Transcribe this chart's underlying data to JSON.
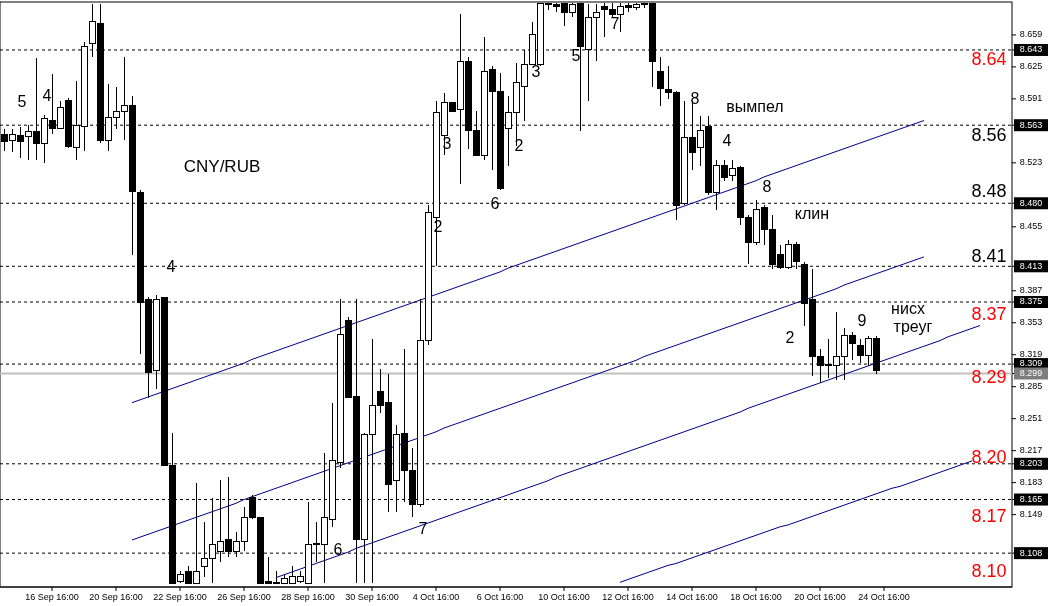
{
  "chart_data": {
    "type": "candlestick",
    "title": "CNY/RUB",
    "categories": [
      null,
      null,
      null,
      null,
      null,
      null,
      "16 Sep 16:00",
      null,
      null,
      null,
      null,
      null,
      null,
      null,
      "20 Sep 16:00",
      null,
      null,
      null,
      null,
      null,
      null,
      null,
      "22 Sep 16:00",
      null,
      null,
      null,
      null,
      null,
      null,
      null,
      "26 Sep 16:00",
      null,
      null,
      null,
      null,
      null,
      null,
      null,
      "28 Sep 16:00",
      null,
      null,
      null,
      null,
      null,
      null,
      null,
      "30 Sep 16:00",
      null,
      null,
      null,
      null,
      null,
      null,
      null,
      "4 Oct 16:00",
      null,
      null,
      null,
      null,
      null,
      null,
      null,
      "6 Oct 16:00",
      null,
      null,
      null,
      null,
      null,
      null,
      null,
      "10 Oct 16:00",
      null,
      null,
      null,
      null,
      null,
      null,
      null,
      "12 Oct 16:00",
      null,
      null,
      null,
      null,
      null,
      null,
      null,
      "14 Oct 16:00",
      null,
      null,
      null,
      null,
      null,
      null,
      null,
      "18 Oct 16:00",
      null,
      null,
      null,
      null,
      null,
      null,
      null,
      "20 Oct 16:00",
      null,
      null,
      null,
      null,
      null,
      null,
      null,
      "24 Oct 16:00",
      null,
      null,
      null,
      null,
      null,
      null,
      null,
      null,
      null,
      null,
      null,
      null,
      null,
      null,
      null
    ],
    "ohlc": [
      [
        8.553,
        8.559,
        8.536,
        8.546
      ],
      [
        8.547,
        8.559,
        8.534,
        8.553
      ],
      [
        8.552,
        8.561,
        8.528,
        8.546
      ],
      [
        8.551,
        8.563,
        8.526,
        8.556
      ],
      [
        8.556,
        8.634,
        8.526,
        8.544
      ],
      [
        8.544,
        8.574,
        8.523,
        8.57
      ],
      [
        8.568,
        8.617,
        8.554,
        8.559
      ],
      [
        8.559,
        8.589,
        8.559,
        8.582
      ],
      [
        8.589,
        8.592,
        8.539,
        8.54
      ],
      [
        8.539,
        8.61,
        8.526,
        8.563
      ],
      [
        8.562,
        8.652,
        8.536,
        8.647
      ],
      [
        8.65,
        8.692,
        8.635,
        8.673
      ],
      [
        8.671,
        8.692,
        8.544,
        8.547
      ],
      [
        8.547,
        8.607,
        8.536,
        8.571
      ],
      [
        8.571,
        8.604,
        8.559,
        8.578
      ],
      [
        8.578,
        8.636,
        8.547,
        8.584
      ],
      [
        8.584,
        8.594,
        8.425,
        8.492
      ],
      [
        8.491,
        8.494,
        8.32,
        8.375
      ],
      [
        8.378,
        8.38,
        8.273,
        8.3
      ],
      [
        8.302,
        8.383,
        8.283,
        8.378
      ],
      [
        8.38,
        8.38,
        8.201,
        8.201
      ],
      [
        8.201,
        8.236,
        8.076,
        8.076
      ],
      [
        8.078,
        8.089,
        8.076,
        8.085
      ],
      [
        8.089,
        8.094,
        8.076,
        8.076
      ],
      [
        8.076,
        8.183,
        8.076,
        8.089
      ],
      [
        8.094,
        8.141,
        8.083,
        8.102
      ],
      [
        8.102,
        8.167,
        8.076,
        8.117
      ],
      [
        8.11,
        8.186,
        8.099,
        8.12
      ],
      [
        8.122,
        8.189,
        8.104,
        8.11
      ],
      [
        8.11,
        8.131,
        8.104,
        8.12
      ],
      [
        8.12,
        8.157,
        8.11,
        8.146
      ],
      [
        8.167,
        8.17,
        8.144,
        8.146
      ],
      [
        8.146,
        8.146,
        8.076,
        8.076
      ],
      [
        8.078,
        8.104,
        8.076,
        8.076
      ],
      [
        8.077,
        8.089,
        8.076,
        8.076
      ],
      [
        8.076,
        8.085,
        8.076,
        8.081
      ],
      [
        8.076,
        8.094,
        8.076,
        8.083
      ],
      [
        8.078,
        8.089,
        8.076,
        8.083
      ],
      [
        8.076,
        8.162,
        8.076,
        8.117
      ],
      [
        8.117,
        8.141,
        8.099,
        8.118
      ],
      [
        8.117,
        8.215,
        8.076,
        8.146
      ],
      [
        8.144,
        8.268,
        8.136,
        8.207
      ],
      [
        8.204,
        8.378,
        8.199,
        8.341
      ],
      [
        8.355,
        8.359,
        8.273,
        8.273
      ],
      [
        8.275,
        8.378,
        8.076,
        8.123
      ],
      [
        8.123,
        8.236,
        8.076,
        8.234
      ],
      [
        8.234,
        8.336,
        8.076,
        8.265
      ],
      [
        8.28,
        8.304,
        8.257,
        8.265
      ],
      [
        8.268,
        8.299,
        8.152,
        8.181
      ],
      [
        8.185,
        8.244,
        8.152,
        8.234
      ],
      [
        8.235,
        8.325,
        8.162,
        8.196
      ],
      [
        8.196,
        8.22,
        8.146,
        8.16
      ],
      [
        8.16,
        8.378,
        8.157,
        8.334
      ],
      [
        8.334,
        8.478,
        8.329,
        8.47
      ],
      [
        8.465,
        8.589,
        8.413,
        8.576
      ],
      [
        8.552,
        8.597,
        8.531,
        8.587
      ],
      [
        8.587,
        8.587,
        8.578,
        8.578
      ],
      [
        8.58,
        8.681,
        8.501,
        8.631
      ],
      [
        8.631,
        8.636,
        8.538,
        8.557
      ],
      [
        8.557,
        8.578,
        8.531,
        8.531
      ],
      [
        8.531,
        8.657,
        8.526,
        8.62
      ],
      [
        8.622,
        8.626,
        8.515,
        8.599
      ],
      [
        8.599,
        8.618,
        8.494,
        8.496
      ],
      [
        8.56,
        8.594,
        8.52,
        8.576
      ],
      [
        8.576,
        8.629,
        8.541,
        8.608
      ],
      [
        8.604,
        8.643,
        8.568,
        8.628
      ],
      [
        8.628,
        8.673,
        8.628,
        8.659
      ],
      [
        8.628,
        8.692,
        8.626,
        8.692
      ],
      [
        8.691,
        8.693,
        8.686,
        8.692
      ],
      [
        8.691,
        8.693,
        8.683,
        8.689
      ],
      [
        8.692,
        8.693,
        8.668,
        8.683
      ],
      [
        8.683,
        8.693,
        8.678,
        8.691
      ],
      [
        8.692,
        8.693,
        8.557,
        8.647
      ],
      [
        8.643,
        8.692,
        8.589,
        8.678
      ],
      [
        8.678,
        8.692,
        8.631,
        8.683
      ],
      [
        8.689,
        8.693,
        8.657,
        8.686
      ],
      [
        8.686,
        8.693,
        8.678,
        8.681
      ],
      [
        8.681,
        8.693,
        8.662,
        8.689
      ],
      [
        8.69,
        8.693,
        8.683,
        8.688
      ],
      [
        8.688,
        8.693,
        8.686,
        8.691
      ],
      [
        8.691,
        8.693,
        8.688,
        8.692
      ],
      [
        8.692,
        8.693,
        8.604,
        8.631
      ],
      [
        8.62,
        8.636,
        8.583,
        8.602
      ],
      [
        8.601,
        8.626,
        8.591,
        8.598
      ],
      [
        8.598,
        8.599,
        8.462,
        8.478
      ],
      [
        8.48,
        8.589,
        8.478,
        8.55
      ],
      [
        8.55,
        8.589,
        8.515,
        8.534
      ],
      [
        8.539,
        8.573,
        8.52,
        8.557
      ],
      [
        8.562,
        8.573,
        8.489,
        8.491
      ],
      [
        8.491,
        8.526,
        8.473,
        8.52
      ],
      [
        8.52,
        8.526,
        8.504,
        8.507
      ],
      [
        8.51,
        8.526,
        8.504,
        8.517
      ],
      [
        8.518,
        8.52,
        8.457,
        8.465
      ],
      [
        8.465,
        8.468,
        8.415,
        8.438
      ],
      [
        8.438,
        8.483,
        8.436,
        8.473
      ],
      [
        8.475,
        8.478,
        8.436,
        8.452
      ],
      [
        8.452,
        8.468,
        8.41,
        8.415
      ],
      [
        8.425,
        8.436,
        8.41,
        8.412
      ],
      [
        8.412,
        8.441,
        8.41,
        8.436
      ],
      [
        8.436,
        8.439,
        8.41,
        8.418
      ],
      [
        8.415,
        8.418,
        8.35,
        8.373
      ],
      [
        8.378,
        8.41,
        8.296,
        8.317
      ],
      [
        8.317,
        8.325,
        8.289,
        8.307
      ],
      [
        8.307,
        8.336,
        8.294,
        8.309
      ],
      [
        8.307,
        8.364,
        8.292,
        8.317
      ],
      [
        8.317,
        8.347,
        8.292,
        8.339
      ],
      [
        8.339,
        8.343,
        8.313,
        8.331
      ],
      [
        8.329,
        8.336,
        8.31,
        8.318
      ],
      [
        8.318,
        8.339,
        8.307,
        8.336
      ],
      [
        8.336,
        8.339,
        8.299,
        8.302
      ],
      null,
      null,
      null,
      null,
      null,
      null,
      null,
      null,
      null,
      null,
      null,
      null,
      null,
      null,
      null,
      null
    ],
    "series": [
      {
        "type": "line",
        "color": "#00008b",
        "values": [
          null,
          null,
          null,
          null,
          null,
          null,
          null,
          null,
          null,
          null,
          null,
          null,
          null,
          null,
          null,
          null,
          8.268,
          8.271,
          8.274,
          8.277,
          8.28,
          8.283,
          8.286,
          8.289,
          8.292,
          8.295,
          8.298,
          8.301,
          8.304,
          8.307,
          8.31,
          8.314,
          8.317,
          8.32,
          8.323,
          8.326,
          8.329,
          8.332,
          8.335,
          8.338,
          8.341,
          8.344,
          8.347,
          8.35,
          8.353,
          8.356,
          8.359,
          8.362,
          8.365,
          8.368,
          8.371,
          8.374,
          8.377,
          8.38,
          8.383,
          8.386,
          8.389,
          8.392,
          8.395,
          8.398,
          8.401,
          8.404,
          8.407,
          8.411,
          8.414,
          8.417,
          8.42,
          8.423,
          8.426,
          8.429,
          8.432,
          8.435,
          8.438,
          8.441,
          8.444,
          8.447,
          8.45,
          8.453,
          8.456,
          8.459,
          8.462,
          8.465,
          8.468,
          8.471,
          8.474,
          8.477,
          8.48,
          8.483,
          8.486,
          8.489,
          8.492,
          8.495,
          8.498,
          8.501,
          8.504,
          8.508,
          8.511,
          8.514,
          8.517,
          8.52,
          8.523,
          8.526,
          8.529,
          8.532,
          8.535,
          8.538,
          8.541,
          8.544,
          8.547,
          8.55,
          8.553,
          8.556,
          8.559,
          8.562,
          8.565,
          8.568,
          null,
          null,
          null,
          null,
          null,
          null,
          null,
          null,
          null,
          null
        ]
      },
      {
        "type": "line",
        "color": "#00008b",
        "values": [
          null,
          null,
          null,
          null,
          null,
          null,
          null,
          null,
          null,
          null,
          null,
          null,
          null,
          null,
          null,
          null,
          8.122,
          8.125,
          8.128,
          8.131,
          8.134,
          8.137,
          8.14,
          8.143,
          8.146,
          8.149,
          8.152,
          8.155,
          8.158,
          8.161,
          8.165,
          8.168,
          8.171,
          8.174,
          8.177,
          8.18,
          8.183,
          8.186,
          8.189,
          8.192,
          8.195,
          8.198,
          8.201,
          8.204,
          8.207,
          8.21,
          8.213,
          8.216,
          8.219,
          8.222,
          8.225,
          8.228,
          8.231,
          8.234,
          8.237,
          8.241,
          8.244,
          8.247,
          8.25,
          8.253,
          8.256,
          8.259,
          8.262,
          8.265,
          8.268,
          8.271,
          8.274,
          8.277,
          8.28,
          8.283,
          8.286,
          8.289,
          8.292,
          8.295,
          8.298,
          8.301,
          8.304,
          8.307,
          8.31,
          8.313,
          8.317,
          8.32,
          8.323,
          8.326,
          8.329,
          8.332,
          8.335,
          8.338,
          8.341,
          8.344,
          8.347,
          8.35,
          8.353,
          8.356,
          8.359,
          8.362,
          8.365,
          8.368,
          8.371,
          8.374,
          8.377,
          8.38,
          8.383,
          8.386,
          8.389,
          8.393,
          8.396,
          8.399,
          8.402,
          8.405,
          8.408,
          8.411,
          8.414,
          8.417,
          8.42,
          8.423,
          null,
          null,
          null,
          null,
          null,
          null,
          null,
          null,
          null,
          null
        ]
      },
      {
        "type": "line",
        "color": "#00008b",
        "values": [
          null,
          null,
          null,
          null,
          null,
          null,
          null,
          null,
          null,
          null,
          null,
          null,
          null,
          null,
          null,
          null,
          null,
          null,
          null,
          null,
          null,
          null,
          null,
          null,
          null,
          null,
          null,
          null,
          null,
          null,
          null,
          null,
          null,
          null,
          8.082,
          8.085,
          8.088,
          8.091,
          8.094,
          8.097,
          8.1,
          8.103,
          8.106,
          8.109,
          8.113,
          8.116,
          8.119,
          8.122,
          8.125,
          8.128,
          8.131,
          8.134,
          8.137,
          8.14,
          8.143,
          8.146,
          8.149,
          8.152,
          8.155,
          8.158,
          8.161,
          8.164,
          8.167,
          8.17,
          8.173,
          8.176,
          8.179,
          8.182,
          8.185,
          8.189,
          8.192,
          8.195,
          8.198,
          8.201,
          8.204,
          8.207,
          8.21,
          8.213,
          8.216,
          8.219,
          8.222,
          8.225,
          8.228,
          8.231,
          8.234,
          8.237,
          8.24,
          8.243,
          8.246,
          8.249,
          8.252,
          8.255,
          8.258,
          8.262,
          8.265,
          8.268,
          8.271,
          8.274,
          8.277,
          8.28,
          8.283,
          8.286,
          8.289,
          8.292,
          8.295,
          8.298,
          8.301,
          8.304,
          8.307,
          8.31,
          8.313,
          8.316,
          8.319,
          8.322,
          8.325,
          8.328,
          8.331,
          8.334,
          8.338,
          8.341,
          8.344,
          8.347,
          8.35,
          null,
          null,
          null
        ]
      },
      {
        "type": "line",
        "color": "#00008b",
        "values": [
          null,
          null,
          null,
          null,
          null,
          null,
          null,
          null,
          null,
          null,
          null,
          null,
          null,
          null,
          null,
          null,
          null,
          null,
          null,
          null,
          null,
          null,
          null,
          null,
          null,
          null,
          null,
          null,
          null,
          null,
          null,
          null,
          null,
          null,
          null,
          null,
          null,
          null,
          null,
          null,
          null,
          null,
          null,
          null,
          null,
          null,
          null,
          null,
          null,
          null,
          null,
          null,
          null,
          null,
          null,
          null,
          null,
          null,
          null,
          null,
          null,
          null,
          null,
          null,
          null,
          null,
          null,
          null,
          null,
          null,
          null,
          null,
          null,
          null,
          null,
          null,
          null,
          8.077,
          8.08,
          8.083,
          8.086,
          8.089,
          8.092,
          8.095,
          8.097,
          8.1,
          8.103,
          8.106,
          8.109,
          8.112,
          8.115,
          8.118,
          8.121,
          8.124,
          8.127,
          8.13,
          8.133,
          8.136,
          8.138,
          8.141,
          8.144,
          8.147,
          8.15,
          8.153,
          8.156,
          8.159,
          8.162,
          8.165,
          8.168,
          8.171,
          8.174,
          8.177,
          8.179,
          8.182,
          8.185,
          8.188,
          8.191,
          8.194,
          8.197,
          8.2,
          8.203,
          8.206,
          null,
          null,
          null,
          null
        ]
      }
    ],
    "ylim": [
      8.072,
      8.694
    ],
    "yticks": [
      8.659,
      8.643,
      8.625,
      8.591,
      8.563,
      8.523,
      {
        "value": 8.48,
        "label": "8.480"
      },
      8.455,
      8.413,
      8.387,
      8.375,
      8.353,
      8.319,
      8.309,
      8.299,
      8.285,
      8.251,
      8.217,
      8.203,
      8.183,
      8.165,
      8.149,
      8.108
    ],
    "ref_lines": [
      {
        "axis": "y",
        "value": 8.643,
        "line_style": "dashed"
      },
      {
        "axis": "y",
        "value": 8.563,
        "line_style": "dashed"
      },
      {
        "axis": "y",
        "value": 8.48,
        "line_style": "dashed"
      },
      {
        "axis": "y",
        "value": 8.413,
        "line_style": "dashed"
      },
      {
        "axis": "y",
        "value": 8.375,
        "line_style": "dashed"
      },
      {
        "axis": "y",
        "value": 8.309,
        "line_style": "dashed"
      },
      {
        "axis": "y",
        "value": 8.299,
        "color": "#c0c0c0",
        "line_style": "solid"
      },
      {
        "axis": "y",
        "value": 8.203,
        "line_style": "dashed"
      },
      {
        "axis": "y",
        "value": 8.165,
        "line_style": "dashed"
      },
      {
        "axis": "y",
        "value": 8.108,
        "line_style": "dashed"
      }
    ],
    "annotations": [
      "5",
      "4",
      "4",
      "3",
      "2",
      "6",
      "2",
      "3",
      "5",
      "7",
      "8",
      "вымпел",
      "4",
      "8",
      "клин",
      "2",
      "9",
      "нисх",
      "треуг",
      "6",
      "7",
      "8.64",
      "8.56",
      "8.48",
      "8.41",
      "8.37",
      "8.29",
      "8.20",
      "8.17",
      "8.10"
    ]
  }
}
